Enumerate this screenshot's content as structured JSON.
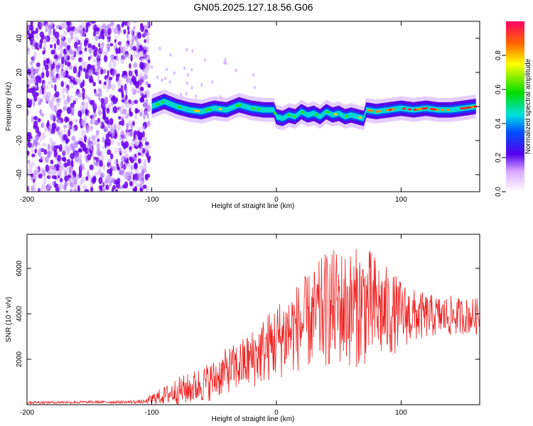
{
  "title": "GN05.2025.127.18.56.G06",
  "chart_data": [
    {
      "type": "heatmap",
      "xlabel": "Height of straight line (km)",
      "ylabel": "Frequency (Hz)",
      "xlim": [
        -200,
        163
      ],
      "ylim": [
        -50,
        50
      ],
      "xticks": [
        -200,
        -100,
        0,
        100
      ],
      "xtick_labels": [
        "-200",
        "-100",
        "0",
        "100"
      ],
      "yticks": [
        -40,
        -20,
        0,
        20,
        40
      ],
      "ytick_labels": [
        "-40",
        "-20",
        "0",
        "20",
        "40"
      ],
      "colorbar": {
        "label": "Normalized spectral amplitude",
        "range": [
          0,
          1
        ],
        "ticks": [
          0.0,
          0.2,
          0.4,
          0.6,
          0.8
        ],
        "tick_labels": [
          "0.0",
          "0.2",
          "0.4",
          "0.6",
          "0.8"
        ]
      },
      "ridge": {
        "x": [
          -100,
          -90,
          -80,
          -70,
          -60,
          -50,
          -40,
          -30,
          -20,
          -10,
          -2,
          0,
          5,
          10,
          15,
          20,
          25,
          30,
          35,
          40,
          45,
          50,
          55,
          60,
          65,
          70,
          72,
          80,
          90,
          100,
          110,
          120,
          130,
          140,
          150,
          160
        ],
        "y": [
          0,
          3,
          0,
          -2,
          -3,
          -1,
          -2,
          1,
          -1,
          -2,
          -2,
          -6,
          -7,
          -5,
          -6,
          -3,
          -5,
          -4,
          -6,
          -3,
          -5,
          -4,
          -6,
          -5,
          -6,
          -7,
          -2,
          -3,
          -2,
          -1,
          -2,
          -1,
          -2,
          -2,
          -1,
          0
        ]
      },
      "grid": false
    },
    {
      "type": "line",
      "xlabel": "Height of straight line (km)",
      "ylabel": "SNR (10 * v/v)",
      "xlim": [
        -200,
        163
      ],
      "ylim": [
        0,
        7500
      ],
      "xticks": [
        -200,
        -100,
        0,
        100
      ],
      "xtick_labels": [
        "-200",
        "-100",
        "0",
        "100"
      ],
      "yticks": [
        2000,
        4000,
        6000
      ],
      "ytick_labels": [
        "2000",
        "4000",
        "6000"
      ],
      "series": [
        {
          "color": "#ee2222",
          "envelope": {
            "x": [
              -200,
              -160,
              -120,
              -105,
              -100,
              -90,
              -80,
              -70,
              -60,
              -50,
              -40,
              -30,
              -20,
              -10,
              0,
              10,
              20,
              30,
              40,
              50,
              60,
              70,
              80,
              90,
              100,
              110,
              120,
              130,
              140,
              150,
              163
            ],
            "mean": [
              100,
              110,
              120,
              130,
              250,
              400,
              600,
              700,
              900,
              1100,
              1500,
              1700,
              2000,
              2400,
              2800,
              3200,
              3500,
              3800,
              4200,
              4300,
              4200,
              4400,
              4200,
              4000,
              4000,
              3900,
              3900,
              3900,
              3900,
              3900,
              3900
            ],
            "amplitude": [
              60,
              60,
              60,
              80,
              250,
              400,
              600,
              700,
              800,
              900,
              1000,
              1100,
              1300,
              1500,
              1700,
              1900,
              2000,
              2200,
              2600,
              2600,
              2600,
              2700,
              2400,
              2000,
              1500,
              1200,
              1000,
              900,
              900,
              800,
              800
            ]
          }
        }
      ],
      "grid": false
    }
  ]
}
